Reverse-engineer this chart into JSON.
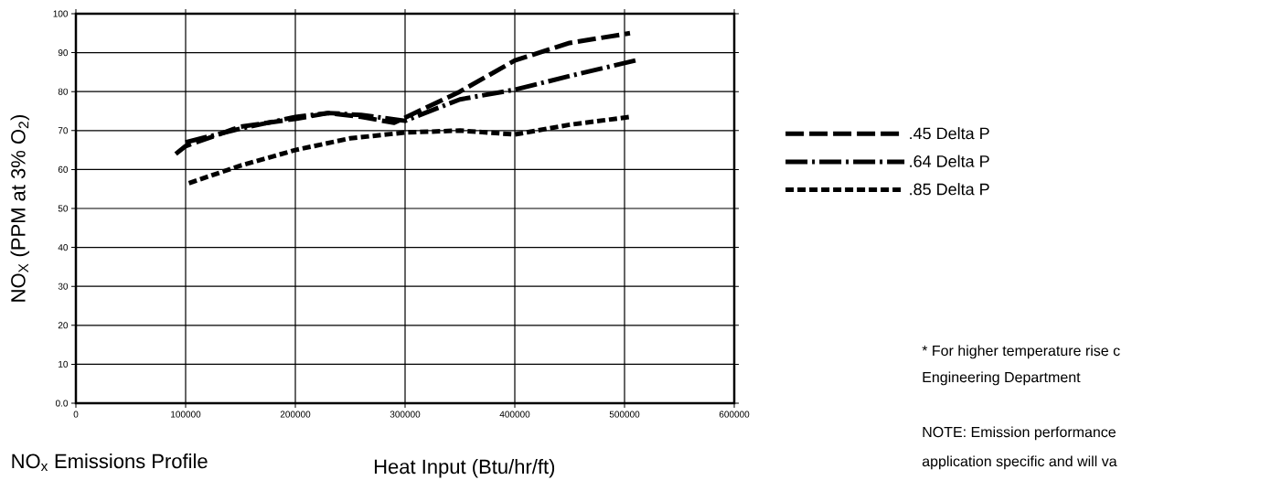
{
  "chart_data": {
    "type": "line",
    "title": "NO$_{x}$ Emissions Profile",
    "xlabel": "Heat Input (Btu/hr/ft)",
    "ylabel": "NO$_{X}$ (PPM at 3% O$_{2}$)",
    "xlim": [
      0,
      600000
    ],
    "ylim": [
      0,
      100
    ],
    "xticks": [
      0,
      100000,
      200000,
      300000,
      400000,
      500000,
      600000
    ],
    "yticks": [
      {
        "value": 0,
        "label": "0.0"
      },
      10,
      20,
      30,
      40,
      50,
      60,
      70,
      80,
      90,
      100
    ],
    "grid": true,
    "legend": "right",
    "series": [
      {
        "name": ".45 Delta P",
        "color": "#000000",
        "line_style": "dashed",
        "x": [
          91000,
          100000,
          150000,
          200000,
          230000,
          260000,
          290000,
          350000,
          400000,
          450000,
          505000
        ],
        "values": [
          64,
          66,
          71,
          73,
          74.5,
          73.5,
          72,
          80,
          88,
          92.5,
          95
        ]
      },
      {
        "name": ".64 Delta P",
        "color": "#000000",
        "line_style": "dashdot",
        "x": [
          100000,
          150000,
          200000,
          230000,
          260000,
          300000,
          350000,
          400000,
          450000,
          510000
        ],
        "values": [
          67,
          70.5,
          73.5,
          74.5,
          74,
          72.5,
          78,
          80.5,
          84,
          88
        ]
      },
      {
        "name": ".85 Delta P",
        "color": "#000000",
        "line_style": "dotted",
        "x": [
          103000,
          150000,
          200000,
          250000,
          300000,
          350000,
          400000,
          450000,
          505000
        ],
        "values": [
          56.5,
          61,
          65,
          68,
          69.5,
          70,
          69,
          71.5,
          73.5
        ]
      }
    ],
    "annotations": [
      "* For higher temperature rise c",
      "Engineering Department",
      "NOTE: Emission performance",
      "application specific and will va"
    ]
  }
}
